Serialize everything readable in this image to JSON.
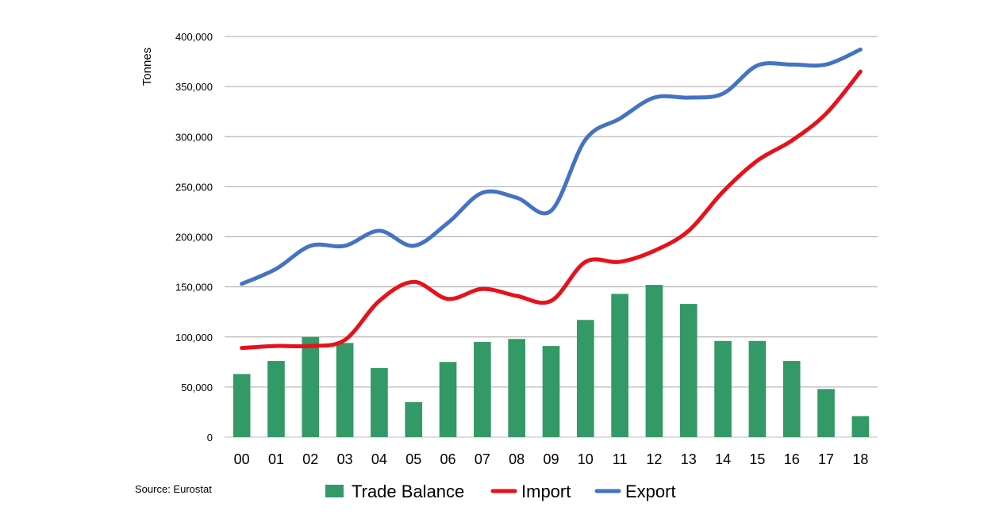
{
  "source_label": "Source:  Eurostat",
  "chart_data": {
    "type": "bar",
    "ylabel": "Tonnes",
    "ylim": [
      0,
      400000
    ],
    "yticks": [
      0,
      50000,
      100000,
      150000,
      200000,
      250000,
      300000,
      350000,
      400000
    ],
    "ytick_labels": [
      "0",
      "50,000",
      "100,000",
      "150,000",
      "200,000",
      "250,000",
      "300,000",
      "350,000",
      "400,000"
    ],
    "grid": true,
    "legend_position": "bottom",
    "categories": [
      "00",
      "01",
      "02",
      "03",
      "04",
      "05",
      "06",
      "07",
      "08",
      "09",
      "10",
      "11",
      "12",
      "13",
      "14",
      "15",
      "16",
      "17",
      "18"
    ],
    "series": [
      {
        "name": "Trade Balance",
        "kind": "bar",
        "color": "#339966",
        "values": [
          63000,
          76000,
          100000,
          94000,
          69000,
          35000,
          75000,
          95000,
          98000,
          91000,
          117000,
          143000,
          152000,
          133000,
          96000,
          96000,
          76000,
          48000,
          21000
        ]
      },
      {
        "name": "Import",
        "kind": "line",
        "color": "#e8101a",
        "values": [
          89000,
          91000,
          91000,
          97000,
          136000,
          155000,
          138000,
          148000,
          141000,
          136000,
          175000,
          175000,
          186000,
          206000,
          245000,
          276000,
          296000,
          323000,
          365000
        ]
      },
      {
        "name": "Export",
        "kind": "line",
        "color": "#4472c4",
        "values": [
          153000,
          168000,
          191000,
          191000,
          206000,
          191000,
          214000,
          244000,
          239000,
          226000,
          297000,
          318000,
          339000,
          339000,
          343000,
          371000,
          372000,
          372000,
          387000
        ]
      }
    ]
  }
}
